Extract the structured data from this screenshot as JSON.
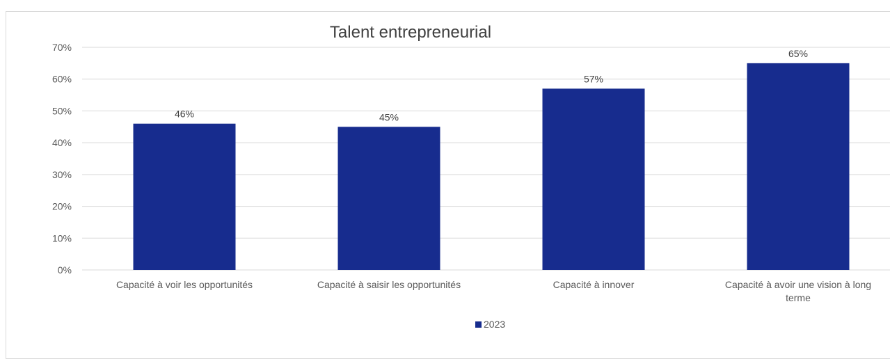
{
  "chart_data": {
    "type": "bar",
    "title": "Talent entrepreneurial",
    "categories": [
      [
        "Capacité à voir les opportunités"
      ],
      [
        "Capacité à saisir les opportunités"
      ],
      [
        "Capacité à innover"
      ],
      [
        "Capacité à avoir une vision à long",
        "terme"
      ]
    ],
    "series": [
      {
        "name": "2023",
        "values": [
          46,
          45,
          57,
          65
        ],
        "labels": [
          "46%",
          "45%",
          "57%",
          "65%"
        ]
      }
    ],
    "y_ticks": [
      "0%",
      "10%",
      "20%",
      "30%",
      "40%",
      "50%",
      "60%",
      "70%"
    ],
    "ylim": [
      0,
      70
    ],
    "grid": true,
    "legend_position": "bottom",
    "colors": {
      "bar": "#172C8E",
      "grid": "#d9d9d9"
    }
  }
}
